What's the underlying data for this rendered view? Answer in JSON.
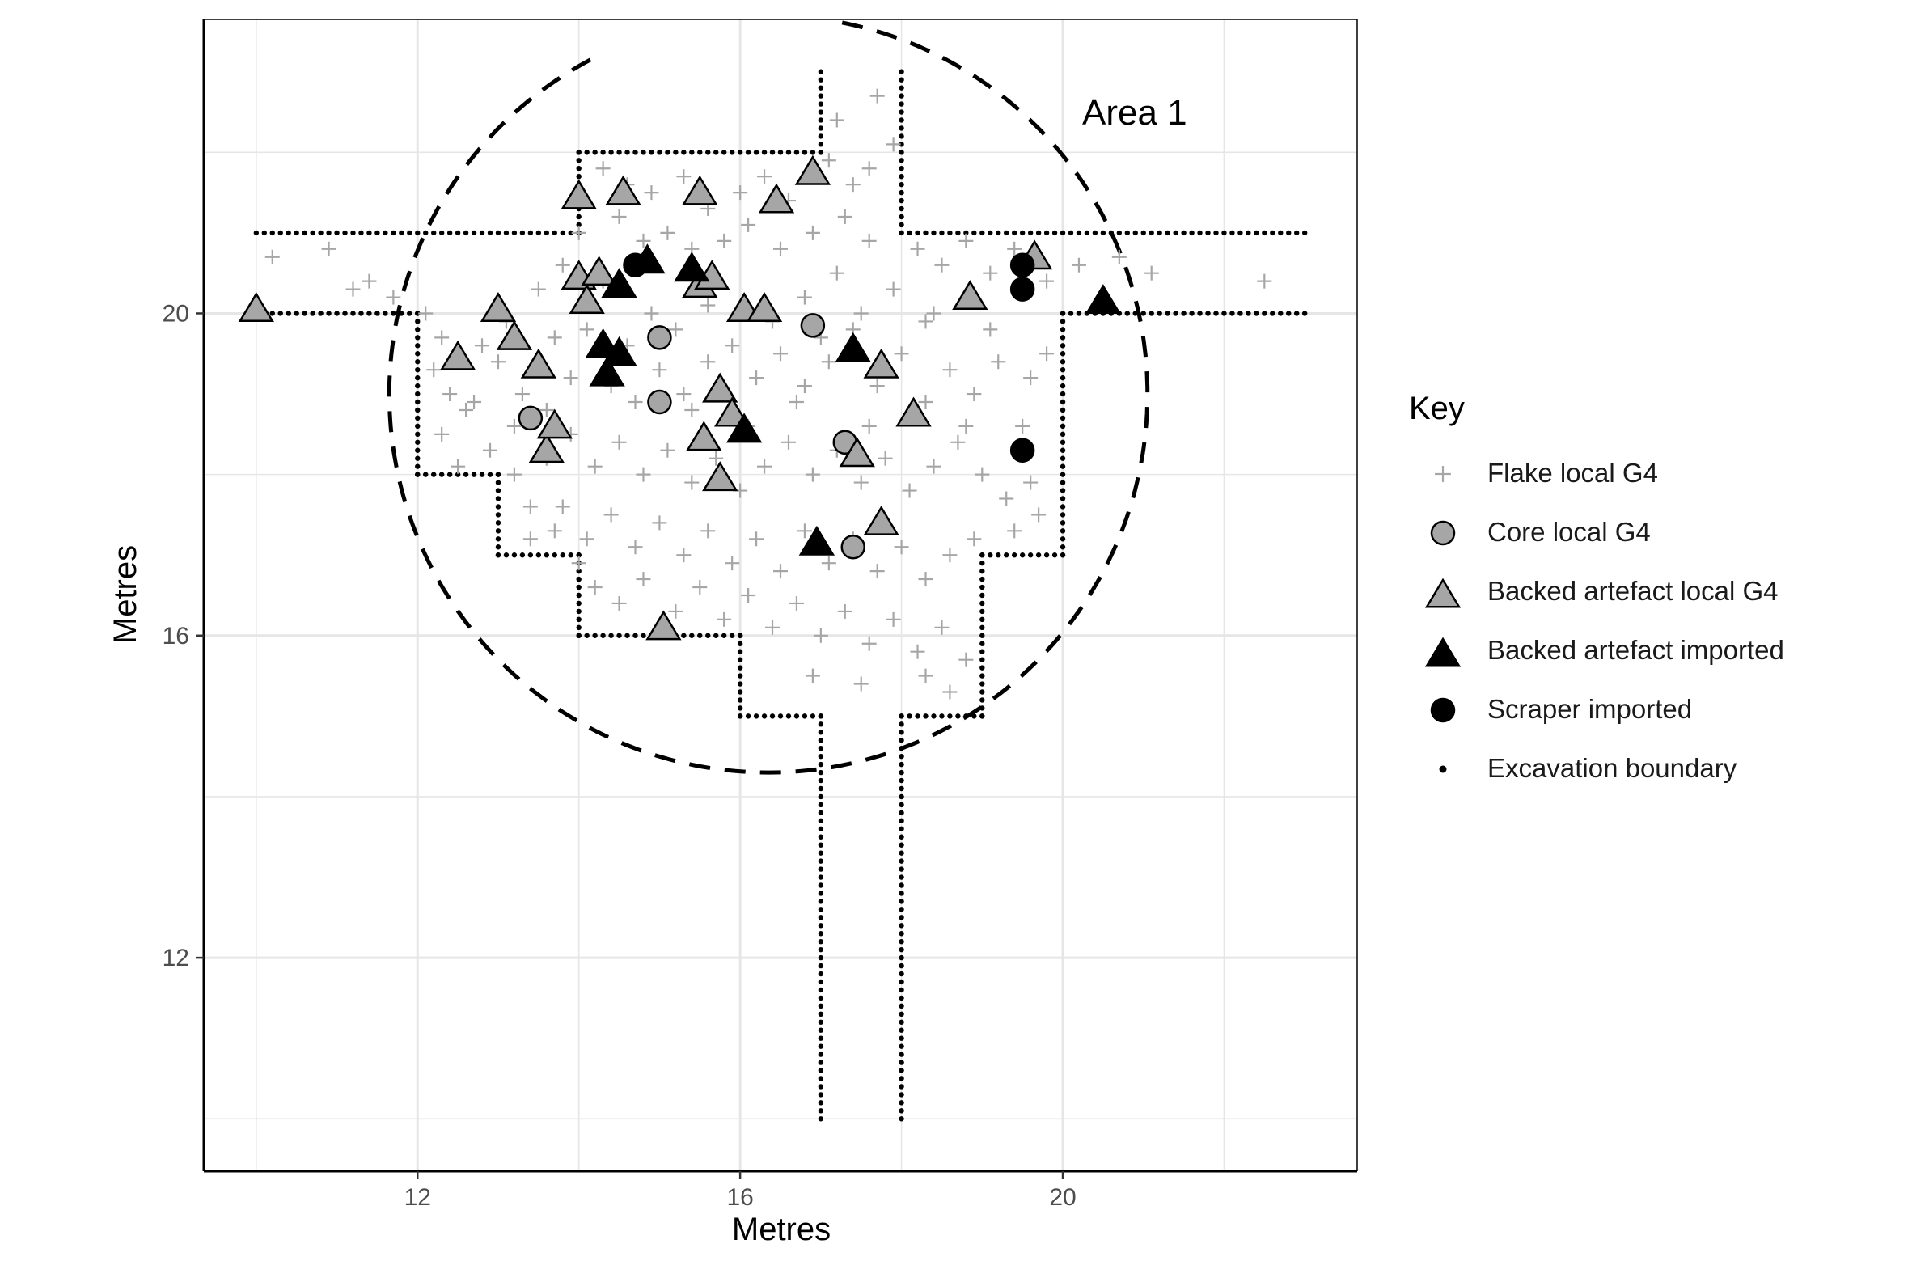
{
  "chart_data": {
    "type": "scatter",
    "xlabel": "Metres",
    "ylabel": "Metres",
    "xlim": [
      9.35,
      23.65
    ],
    "ylim": [
      9.35,
      23.65
    ],
    "x_ticks": [
      12,
      16,
      20
    ],
    "y_ticks": [
      12,
      16,
      20
    ],
    "grid": true,
    "annotation": "Area 1",
    "legend": {
      "title": "Key",
      "position": "right",
      "entries": [
        "Flake local G4",
        "Core local G4",
        "Backed artefact local G4",
        "Backed artefact imported",
        "Scraper imported",
        "Excavation boundary"
      ]
    },
    "colors": {
      "flake": "#a6a6a6",
      "local_fill": "#a6a6a6",
      "imported_fill": "#000000",
      "outline": "#000000",
      "grid": "#e6e6e6"
    },
    "boundary": [
      [
        10,
        21
      ],
      [
        14,
        21
      ],
      [
        14,
        22
      ],
      [
        17,
        22
      ],
      [
        17,
        23
      ],
      [
        17,
        23
      ],
      [
        18,
        23
      ],
      [
        18,
        21
      ],
      [
        23,
        21
      ],
      [
        23,
        20
      ],
      [
        20,
        20
      ],
      [
        20,
        17
      ],
      [
        19,
        17
      ],
      [
        19,
        15
      ],
      [
        18,
        15
      ],
      [
        18,
        10
      ],
      [
        17,
        10
      ],
      [
        17,
        15
      ],
      [
        16,
        15
      ],
      [
        16,
        16
      ],
      [
        14,
        16
      ],
      [
        14,
        17
      ],
      [
        13,
        17
      ],
      [
        13,
        18
      ],
      [
        12,
        18
      ],
      [
        12,
        20
      ],
      [
        10,
        20
      ]
    ],
    "boundary_segments": [
      [
        [
          10,
          21
        ],
        [
          14,
          21
        ],
        [
          14,
          22
        ],
        [
          17,
          22
        ],
        [
          17,
          23
        ]
      ],
      [
        [
          18,
          23
        ],
        [
          18,
          21
        ],
        [
          23,
          21
        ]
      ],
      [
        [
          10,
          20
        ],
        [
          12,
          20
        ],
        [
          12,
          18
        ],
        [
          13,
          18
        ],
        [
          13,
          17
        ],
        [
          14,
          17
        ],
        [
          14,
          16
        ],
        [
          16,
          16
        ],
        [
          16,
          15
        ],
        [
          17,
          15
        ],
        [
          17,
          10
        ]
      ],
      [
        [
          23,
          20
        ],
        [
          20,
          20
        ],
        [
          20,
          17
        ],
        [
          19,
          17
        ],
        [
          19,
          15
        ],
        [
          18,
          15
        ],
        [
          18,
          10
        ]
      ]
    ],
    "dashed_circle": {
      "center_x": 16.35,
      "center_y": 19.0,
      "radius": 4.7,
      "start_deg": 118,
      "end_deg": 439
    },
    "series": [
      {
        "name": "Flake local G4",
        "marker": "plus",
        "points": [
          [
            10.2,
            20.7
          ],
          [
            10.9,
            20.8
          ],
          [
            11.2,
            20.3
          ],
          [
            11.4,
            20.4
          ],
          [
            11.7,
            20.2
          ],
          [
            12.1,
            20.0
          ],
          [
            12.3,
            19.7
          ],
          [
            12.2,
            19.3
          ],
          [
            12.4,
            19.0
          ],
          [
            12.6,
            18.8
          ],
          [
            12.3,
            18.5
          ],
          [
            12.9,
            18.3
          ],
          [
            12.5,
            18.1
          ],
          [
            13.2,
            18.0
          ],
          [
            13.4,
            17.6
          ],
          [
            13.7,
            17.3
          ],
          [
            13.1,
            19.9
          ],
          [
            13.5,
            20.3
          ],
          [
            13.8,
            20.6
          ],
          [
            14.0,
            21.0
          ],
          [
            14.3,
            21.8
          ],
          [
            14.6,
            21.6
          ],
          [
            14.9,
            21.5
          ],
          [
            15.3,
            21.7
          ],
          [
            15.6,
            21.3
          ],
          [
            16.0,
            21.5
          ],
          [
            16.3,
            21.7
          ],
          [
            16.6,
            21.4
          ],
          [
            17.1,
            21.9
          ],
          [
            17.4,
            21.6
          ],
          [
            17.6,
            21.8
          ],
          [
            17.2,
            22.4
          ],
          [
            17.7,
            22.7
          ],
          [
            17.9,
            22.1
          ],
          [
            14.5,
            21.2
          ],
          [
            14.8,
            20.9
          ],
          [
            15.1,
            21.0
          ],
          [
            15.4,
            20.8
          ],
          [
            15.8,
            20.9
          ],
          [
            16.1,
            21.1
          ],
          [
            16.5,
            20.8
          ],
          [
            16.9,
            21.0
          ],
          [
            17.3,
            21.2
          ],
          [
            17.6,
            20.9
          ],
          [
            18.2,
            20.8
          ],
          [
            18.5,
            20.6
          ],
          [
            18.8,
            20.9
          ],
          [
            19.1,
            20.5
          ],
          [
            19.4,
            20.8
          ],
          [
            19.8,
            20.4
          ],
          [
            20.2,
            20.6
          ],
          [
            20.7,
            20.7
          ],
          [
            21.1,
            20.5
          ],
          [
            22.5,
            20.4
          ],
          [
            13.0,
            19.4
          ],
          [
            13.3,
            19.0
          ],
          [
            13.6,
            18.8
          ],
          [
            13.9,
            19.2
          ],
          [
            14.1,
            19.8
          ],
          [
            14.4,
            19.1
          ],
          [
            14.7,
            18.9
          ],
          [
            15.0,
            19.3
          ],
          [
            15.3,
            19.0
          ],
          [
            15.6,
            19.4
          ],
          [
            15.9,
            19.6
          ],
          [
            16.2,
            19.2
          ],
          [
            16.5,
            19.5
          ],
          [
            16.8,
            19.1
          ],
          [
            17.1,
            19.4
          ],
          [
            17.4,
            19.8
          ],
          [
            17.7,
            19.1
          ],
          [
            18.0,
            19.5
          ],
          [
            18.3,
            19.9
          ],
          [
            18.6,
            19.3
          ],
          [
            18.9,
            19.0
          ],
          [
            19.2,
            19.4
          ],
          [
            19.6,
            19.2
          ],
          [
            12.8,
            19.6
          ],
          [
            13.2,
            18.6
          ],
          [
            13.6,
            18.2
          ],
          [
            13.9,
            18.5
          ],
          [
            14.2,
            18.1
          ],
          [
            14.5,
            18.4
          ],
          [
            14.8,
            18.0
          ],
          [
            15.1,
            18.3
          ],
          [
            15.4,
            17.9
          ],
          [
            15.7,
            18.2
          ],
          [
            16.0,
            17.8
          ],
          [
            16.3,
            18.1
          ],
          [
            16.6,
            18.4
          ],
          [
            16.9,
            18.0
          ],
          [
            17.2,
            18.3
          ],
          [
            17.5,
            17.9
          ],
          [
            17.8,
            18.2
          ],
          [
            18.1,
            17.8
          ],
          [
            18.4,
            18.1
          ],
          [
            18.7,
            18.4
          ],
          [
            19.0,
            18.0
          ],
          [
            19.3,
            17.7
          ],
          [
            19.6,
            17.9
          ],
          [
            13.8,
            17.6
          ],
          [
            14.1,
            17.2
          ],
          [
            14.4,
            17.5
          ],
          [
            14.7,
            17.1
          ],
          [
            15.0,
            17.4
          ],
          [
            15.3,
            17.0
          ],
          [
            15.6,
            17.3
          ],
          [
            15.9,
            16.9
          ],
          [
            16.2,
            17.2
          ],
          [
            16.5,
            16.8
          ],
          [
            16.8,
            17.3
          ],
          [
            17.1,
            16.9
          ],
          [
            17.4,
            17.2
          ],
          [
            17.7,
            16.8
          ],
          [
            18.0,
            17.1
          ],
          [
            18.3,
            16.7
          ],
          [
            18.6,
            17.0
          ],
          [
            18.9,
            17.2
          ],
          [
            19.4,
            17.3
          ],
          [
            14.2,
            16.6
          ],
          [
            14.5,
            16.4
          ],
          [
            14.8,
            16.7
          ],
          [
            15.2,
            16.3
          ],
          [
            15.5,
            16.6
          ],
          [
            15.8,
            16.2
          ],
          [
            16.1,
            16.5
          ],
          [
            16.4,
            16.1
          ],
          [
            16.7,
            16.4
          ],
          [
            17.0,
            16.0
          ],
          [
            17.3,
            16.3
          ],
          [
            17.6,
            15.9
          ],
          [
            17.9,
            16.2
          ],
          [
            18.2,
            15.8
          ],
          [
            18.5,
            16.1
          ],
          [
            18.8,
            15.7
          ],
          [
            16.9,
            15.5
          ],
          [
            17.5,
            15.4
          ],
          [
            18.3,
            15.5
          ],
          [
            18.6,
            15.3
          ],
          [
            15.6,
            20.1
          ],
          [
            14.9,
            20.0
          ],
          [
            16.8,
            20.2
          ],
          [
            17.2,
            20.5
          ],
          [
            17.9,
            20.3
          ],
          [
            18.4,
            20.0
          ],
          [
            14.3,
            20.4
          ],
          [
            13.7,
            19.7
          ],
          [
            19.1,
            19.8
          ],
          [
            19.5,
            18.6
          ],
          [
            19.8,
            19.5
          ],
          [
            12.7,
            18.9
          ],
          [
            13.4,
            17.2
          ],
          [
            15.4,
            18.8
          ],
          [
            16.1,
            18.6
          ],
          [
            16.7,
            18.9
          ],
          [
            17.6,
            18.6
          ],
          [
            18.3,
            18.9
          ],
          [
            14.6,
            19.6
          ],
          [
            15.2,
            19.8
          ],
          [
            16.4,
            19.9
          ],
          [
            17.0,
            19.7
          ],
          [
            17.5,
            20.0
          ],
          [
            18.8,
            18.6
          ],
          [
            19.7,
            17.5
          ],
          [
            14.0,
            16.9
          ]
        ]
      },
      {
        "name": "Core local G4",
        "marker": "circle",
        "points": [
          [
            13.4,
            18.7
          ],
          [
            15.0,
            18.9
          ],
          [
            15.0,
            19.7
          ],
          [
            16.9,
            19.85
          ],
          [
            17.3,
            18.4
          ],
          [
            17.4,
            17.1
          ]
        ]
      },
      {
        "name": "Backed artefact local G4",
        "marker": "triangle",
        "points": [
          [
            10.0,
            20.05
          ],
          [
            12.5,
            19.45
          ],
          [
            13.0,
            20.05
          ],
          [
            13.2,
            19.7
          ],
          [
            13.5,
            19.35
          ],
          [
            13.6,
            18.3
          ],
          [
            13.7,
            18.6
          ],
          [
            14.0,
            21.45
          ],
          [
            14.0,
            20.45
          ],
          [
            14.1,
            20.15
          ],
          [
            14.25,
            20.5
          ],
          [
            14.55,
            21.5
          ],
          [
            15.05,
            16.1
          ],
          [
            15.5,
            21.5
          ],
          [
            15.5,
            20.35
          ],
          [
            15.55,
            18.45
          ],
          [
            15.65,
            20.45
          ],
          [
            15.75,
            17.95
          ],
          [
            15.75,
            19.05
          ],
          [
            15.9,
            18.75
          ],
          [
            16.05,
            20.05
          ],
          [
            16.3,
            20.05
          ],
          [
            16.45,
            21.4
          ],
          [
            16.9,
            21.75
          ],
          [
            17.45,
            18.25
          ],
          [
            17.75,
            19.35
          ],
          [
            17.75,
            17.4
          ],
          [
            18.15,
            18.75
          ],
          [
            18.85,
            20.2
          ],
          [
            19.65,
            20.7
          ]
        ]
      },
      {
        "name": "Backed artefact imported",
        "marker": "triangle",
        "points": [
          [
            14.5,
            20.35
          ],
          [
            14.85,
            20.65
          ],
          [
            15.4,
            20.55
          ],
          [
            14.3,
            19.6
          ],
          [
            14.5,
            19.5
          ],
          [
            14.35,
            19.25
          ],
          [
            16.05,
            18.55
          ],
          [
            16.95,
            17.15
          ],
          [
            17.4,
            19.55
          ],
          [
            20.5,
            20.15
          ]
        ]
      },
      {
        "name": "Scraper imported",
        "marker": "circle",
        "points": [
          [
            14.7,
            20.6
          ],
          [
            19.5,
            20.6
          ],
          [
            19.5,
            20.3
          ],
          [
            19.5,
            18.3
          ]
        ]
      }
    ]
  }
}
